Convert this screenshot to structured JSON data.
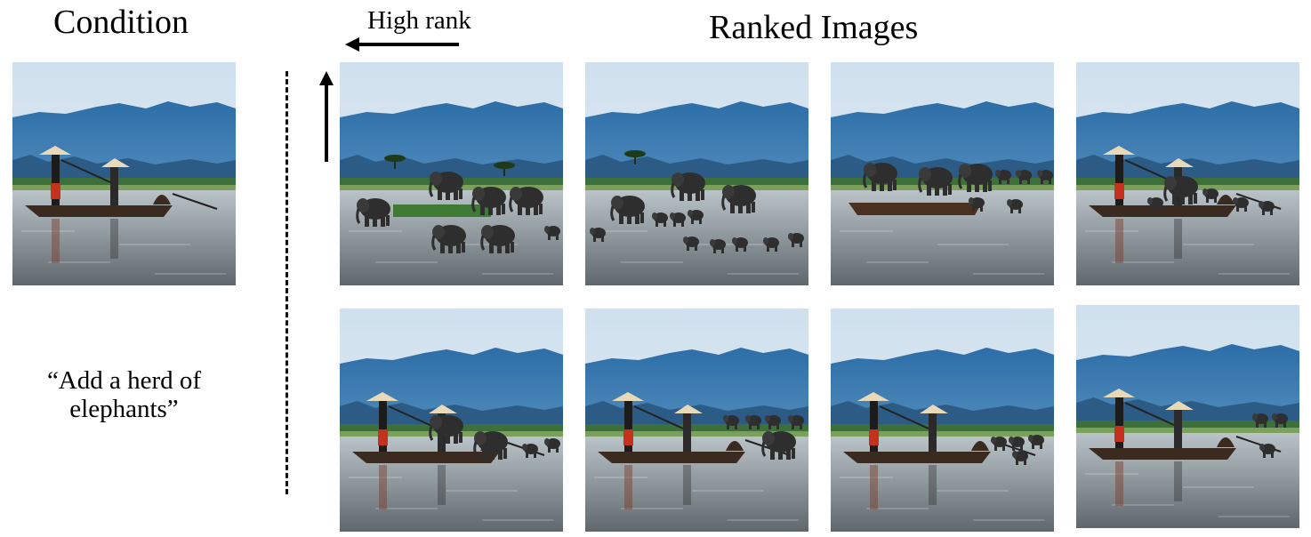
{
  "condition": {
    "title": "Condition",
    "caption": "“Add a herd of elephants”"
  },
  "ranked": {
    "title": "Ranked Images",
    "high_rank_label": "High rank"
  }
}
